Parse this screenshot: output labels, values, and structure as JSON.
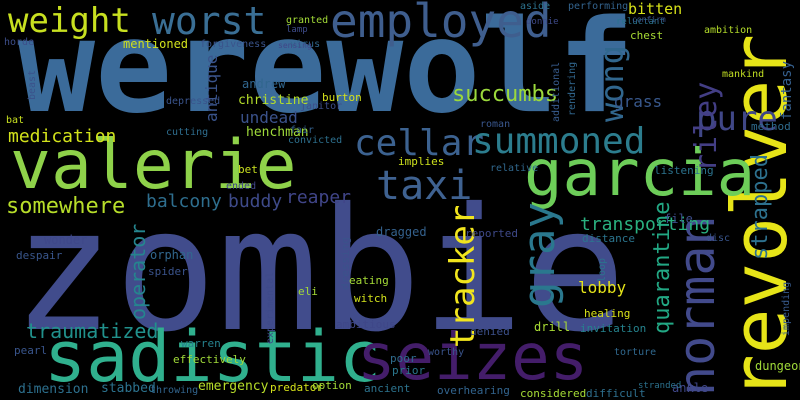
{
  "words": [
    {
      "text": "werewolf",
      "color": "#3b6b9a"
    },
    {
      "text": "zombie",
      "color": "#414c8c"
    },
    {
      "text": "revolver",
      "color": "#e6e418"
    },
    {
      "text": "valerie",
      "color": "#8fd24a"
    },
    {
      "text": "sadistic",
      "color": "#30b08e"
    },
    {
      "text": "seizes",
      "color": "#441d6a"
    },
    {
      "text": "garcia",
      "color": "#6dcd59"
    },
    {
      "text": "employed",
      "color": "#3f5e8e"
    },
    {
      "text": "worst",
      "color": "#3a6f95"
    },
    {
      "text": "weight",
      "color": "#c8e020"
    },
    {
      "text": "norman",
      "color": "#424a8b"
    },
    {
      "text": "taxi",
      "color": "#3f6291"
    },
    {
      "text": "cellar",
      "color": "#3c6290"
    },
    {
      "text": "summoned",
      "color": "#2c7d8e"
    },
    {
      "text": "gray",
      "color": "#2a788e"
    },
    {
      "text": "tracker",
      "color": "#f1e51d"
    },
    {
      "text": "pure",
      "color": "#404787"
    },
    {
      "text": "wong",
      "color": "#31678e"
    },
    {
      "text": "riley",
      "color": "#433e85"
    },
    {
      "text": "somewhere",
      "color": "#b7de2a"
    },
    {
      "text": "succumbs",
      "color": "#9bd93c"
    },
    {
      "text": "strapped",
      "color": "#2d718e"
    },
    {
      "text": "quarantine",
      "color": "#22a884"
    },
    {
      "text": "traumatized",
      "color": "#21918c"
    },
    {
      "text": "operator",
      "color": "#25858e"
    },
    {
      "text": "balcony",
      "color": "#2e6e8e"
    },
    {
      "text": "buddy",
      "color": "#3e4a89"
    },
    {
      "text": "reaper",
      "color": "#404588"
    },
    {
      "text": "transporting",
      "color": "#2ab07f"
    },
    {
      "text": "lobby",
      "color": "#e5e419"
    },
    {
      "text": "medication",
      "color": "#d2e21b"
    },
    {
      "text": "antique",
      "color": "#3a548c"
    },
    {
      "text": "undead",
      "color": "#3b528b"
    },
    {
      "text": "grass",
      "color": "#38588c"
    },
    {
      "text": "bitten",
      "color": "#d8e219"
    },
    {
      "text": "mentioned",
      "color": "#d0e11c"
    },
    {
      "text": "fantasy",
      "color": "#355f8d"
    },
    {
      "text": "dimension",
      "color": "#2d708e"
    },
    {
      "text": "emergency",
      "color": "#b8de29"
    },
    {
      "text": "stabbed",
      "color": "#2c728e"
    },
    {
      "text": "dungeon",
      "color": "#a0da39"
    },
    {
      "text": "ankle",
      "color": "#3f4788"
    },
    {
      "text": "christine",
      "color": "#b5de2b"
    },
    {
      "text": "andrew",
      "color": "#31668e"
    },
    {
      "text": "henchman",
      "color": "#9fda3a"
    },
    {
      "text": "burton",
      "color": "#d5e21a"
    },
    {
      "text": "implies",
      "color": "#cde11d"
    },
    {
      "text": "dragged",
      "color": "#34618d"
    },
    {
      "text": "reported",
      "color": "#3e4989"
    },
    {
      "text": "distance",
      "color": "#2b758e"
    },
    {
      "text": "listening",
      "color": "#2c738e"
    },
    {
      "text": "file",
      "color": "#3d4d8a"
    },
    {
      "text": "method",
      "color": "#2f6c8e"
    },
    {
      "text": "orphan",
      "color": "#31678e"
    },
    {
      "text": "spider",
      "color": "#3a538b"
    },
    {
      "text": "eating",
      "color": "#a5db36"
    },
    {
      "text": "witch",
      "color": "#d2e21b"
    },
    {
      "text": "eli",
      "color": "#a2da37"
    },
    {
      "text": "drill",
      "color": "#a8db34"
    },
    {
      "text": "invitation",
      "color": "#25838e"
    },
    {
      "text": "healing",
      "color": "#d9e219"
    },
    {
      "text": "wonder",
      "color": "#3f4889"
    },
    {
      "text": "despair",
      "color": "#39568c"
    },
    {
      "text": "dressing",
      "color": "#3b528b"
    },
    {
      "text": "pearl",
      "color": "#39558c"
    },
    {
      "text": "effectively",
      "color": "#a0da39"
    },
    {
      "text": "warren",
      "color": "#26828e"
    },
    {
      "text": "ambitious",
      "color": "#3f4788"
    },
    {
      "text": "denied",
      "color": "#3c508b"
    },
    {
      "text": "poor",
      "color": "#2f6c8e"
    },
    {
      "text": "prior",
      "color": "#2a778e"
    },
    {
      "text": "ancient",
      "color": "#2c738e"
    },
    {
      "text": "overhearing",
      "color": "#32648e"
    },
    {
      "text": "difficult",
      "color": "#2e6f8e"
    },
    {
      "text": "considered",
      "color": "#a5db36"
    },
    {
      "text": "predator",
      "color": "#d5e21a"
    },
    {
      "text": "option",
      "color": "#a2da37"
    },
    {
      "text": "throwing",
      "color": "#32658e"
    },
    {
      "text": "torture",
      "color": "#30688e"
    },
    {
      "text": "impending",
      "color": "#375a8c"
    },
    {
      "text": "experimental",
      "color": "#3e4a89"
    },
    {
      "text": "forgiveness",
      "color": "#3a548c"
    },
    {
      "text": "virus",
      "color": "#31678e"
    },
    {
      "text": "chest",
      "color": "#a8db34"
    },
    {
      "text": "janitor",
      "color": "#3d4e8a"
    },
    {
      "text": "depressed",
      "color": "#3a548c"
    },
    {
      "text": "cutting",
      "color": "#2e6d8e"
    },
    {
      "text": "fair",
      "color": "#34618d"
    },
    {
      "text": "convicted",
      "color": "#2d708e"
    },
    {
      "text": "bet",
      "color": "#cae11f"
    },
    {
      "text": "ended",
      "color": "#3f4788"
    },
    {
      "text": "worthy",
      "color": "#3a548c"
    },
    {
      "text": "roman",
      "color": "#39568c"
    },
    {
      "text": "relative",
      "color": "#31688e"
    },
    {
      "text": "loop",
      "color": "#2c728e"
    },
    {
      "text": "disc",
      "color": "#39558c"
    },
    {
      "text": "additional",
      "color": "#375b8d"
    },
    {
      "text": "rendering",
      "color": "#31678e"
    },
    {
      "text": "reluctant",
      "color": "#2b748e"
    },
    {
      "text": "ambition",
      "color": "#b5de2b"
    },
    {
      "text": "mankind",
      "color": "#c2df23"
    },
    {
      "text": "performing",
      "color": "#33638d"
    },
    {
      "text": "granted",
      "color": "#a2da37"
    },
    {
      "text": "aside",
      "color": "#2c728e"
    },
    {
      "text": "donnie",
      "color": "#3e4a89"
    },
    {
      "text": "horde",
      "color": "#3d4e8a"
    },
    {
      "text": "beast",
      "color": "#3b528b"
    },
    {
      "text": "bat",
      "color": "#c8e020"
    },
    {
      "text": "lamp",
      "color": "#3e4c8a"
    },
    {
      "text": "sensing",
      "color": "#404688"
    },
    {
      "text": "confirm",
      "color": "#3a548c"
    },
    {
      "text": "stranded",
      "color": "#2c728e"
    }
  ]
}
